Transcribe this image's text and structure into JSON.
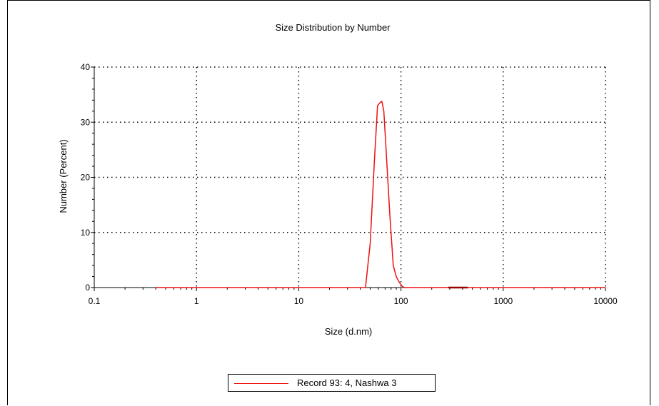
{
  "chart_data": {
    "type": "line",
    "title": "Size Distribution by Number",
    "xlabel": "Size (d.nm)",
    "ylabel": "Number (Percent)",
    "xscale": "log",
    "xlim": [
      0.1,
      10000
    ],
    "ylim": [
      0,
      40
    ],
    "x_tick_labels": [
      "0.1",
      "1",
      "10",
      "100",
      "1000",
      "10000"
    ],
    "y_tick_labels": [
      "0",
      "10",
      "20",
      "30",
      "40"
    ],
    "grid": true,
    "legend_position": "bottom-center",
    "series": [
      {
        "name": "Record 93: 4, Nashwa 3",
        "color": "#ee1111",
        "x": [
          0.4,
          1,
          10,
          40,
          45,
          50,
          55,
          59,
          62,
          65,
          68,
          72,
          78,
          84,
          90,
          96,
          102,
          108,
          118,
          150,
          300,
          500,
          1000,
          10000
        ],
        "y": [
          0,
          0,
          0,
          0,
          0,
          8,
          23,
          33,
          33.5,
          33.8,
          32,
          24,
          13,
          4,
          2,
          1,
          0.3,
          0,
          0,
          0,
          0,
          0,
          0,
          0
        ]
      }
    ]
  }
}
